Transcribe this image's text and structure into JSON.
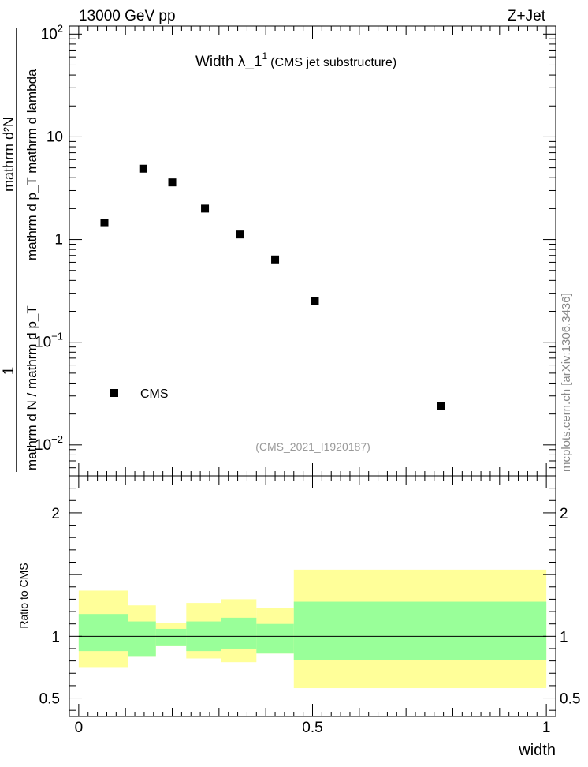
{
  "header": {
    "left": "13000 GeV pp",
    "right": "Z+Jet"
  },
  "side_text": "mcplots.cern.ch [arXiv:1306.3436]",
  "chart_data": [
    {
      "type": "scatter",
      "title": "Width λ_1",
      "title_sup": "1",
      "subtitle": "(CMS jet substructure)",
      "watermark": "(CMS_2021_I1920187)",
      "ylabel_numerator": "1",
      "ylabel_denominator": "mathrm d N / mathrm d p_T mathrm d p_T mathrm d lambda",
      "ylabel_upper": "mathrm d²N",
      "ylabel_upper_detail": "mathrm d p_T mathrm d lambda",
      "ylabel_lower": "mathrm d N / mathrm d p_T",
      "yscale": "log",
      "ylim": [
        0.005,
        120
      ],
      "xlim": [
        -0.02,
        1.02
      ],
      "y_ticks": [
        {
          "value": 100,
          "label": "10",
          "sup": "2"
        },
        {
          "value": 10,
          "label": "10",
          "sup": ""
        },
        {
          "value": 1,
          "label": "1",
          "sup": ""
        },
        {
          "value": 0.1,
          "label": "10",
          "sup": "−1"
        },
        {
          "value": 0.01,
          "label": "10",
          "sup": "−2"
        }
      ],
      "legend": {
        "label": "CMS",
        "position": "bottom-left"
      },
      "series": [
        {
          "name": "CMS",
          "color": "#000000",
          "x": [
            0.055,
            0.138,
            0.2,
            0.27,
            0.345,
            0.42,
            0.505,
            0.775
          ],
          "y": [
            1.45,
            4.9,
            3.6,
            2.0,
            1.12,
            0.64,
            0.25,
            0.024
          ]
        }
      ]
    },
    {
      "type": "bar",
      "ylabel": "Ratio to CMS",
      "xlabel": "width",
      "ylim": [
        0.35,
        2.3
      ],
      "xlim": [
        -0.02,
        1.02
      ],
      "y_ticks": [
        {
          "value": 2,
          "label": "2"
        },
        {
          "value": 1,
          "label": "1"
        },
        {
          "value": 0.5,
          "label": "0.5"
        }
      ],
      "x_ticks": [
        {
          "value": 0,
          "label": "0"
        },
        {
          "value": 0.5,
          "label": "0.5"
        },
        {
          "value": 1,
          "label": "1"
        }
      ],
      "reference_line": 1,
      "colors": {
        "inner_band": "#99ff99",
        "outer_band": "#ffff99"
      },
      "bins": [
        {
          "x0": 0.0,
          "x1": 0.105,
          "inner": [
            0.88,
            1.18
          ],
          "outer": [
            0.75,
            1.37
          ]
        },
        {
          "x0": 0.105,
          "x1": 0.165,
          "inner": [
            0.84,
            1.12
          ],
          "outer": [
            0.84,
            1.25
          ]
        },
        {
          "x0": 0.165,
          "x1": 0.23,
          "inner": [
            0.92,
            1.06
          ],
          "outer": [
            0.92,
            1.11
          ]
        },
        {
          "x0": 0.23,
          "x1": 0.305,
          "inner": [
            0.88,
            1.12
          ],
          "outer": [
            0.82,
            1.27
          ]
        },
        {
          "x0": 0.305,
          "x1": 0.38,
          "inner": [
            0.9,
            1.15
          ],
          "outer": [
            0.79,
            1.3
          ]
        },
        {
          "x0": 0.38,
          "x1": 0.46,
          "inner": [
            0.86,
            1.1
          ],
          "outer": [
            0.86,
            1.23
          ]
        },
        {
          "x0": 0.46,
          "x1": 1.0,
          "inner": [
            0.81,
            1.28
          ],
          "outer": [
            0.58,
            1.54
          ]
        }
      ]
    }
  ]
}
